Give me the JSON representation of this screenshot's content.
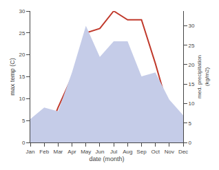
{
  "chart_data": {
    "type": "line",
    "xlabel": "date (month)",
    "ylabel": "max temp (C)",
    "y2label": "med. precipitation\n(kg/m2)",
    "categories": [
      "Jan",
      "Feb",
      "Mar",
      "Apr",
      "May",
      "Jun",
      "Jul",
      "Aug",
      "Sep",
      "Oct",
      "Nov",
      "Dec"
    ],
    "series": [
      {
        "type": "area",
        "axis": "y2",
        "color": "#c5cce8",
        "values": [
          6,
          9,
          8,
          18,
          30,
          22,
          26,
          26,
          17,
          18,
          11,
          7
        ]
      },
      {
        "type": "line",
        "color": "#c0392b",
        "values": [
          0,
          0,
          8,
          15,
          25,
          26,
          30,
          28,
          28,
          18,
          7,
          0
        ]
      }
    ],
    "ylim": [
      0,
      30
    ],
    "yticks": [
      0,
      5,
      10,
      15,
      20,
      25,
      30
    ],
    "y2lim": [
      0,
      33.8
    ],
    "y2ticks": [
      0,
      5,
      10,
      15,
      20,
      25,
      30
    ],
    "grid": false
  }
}
